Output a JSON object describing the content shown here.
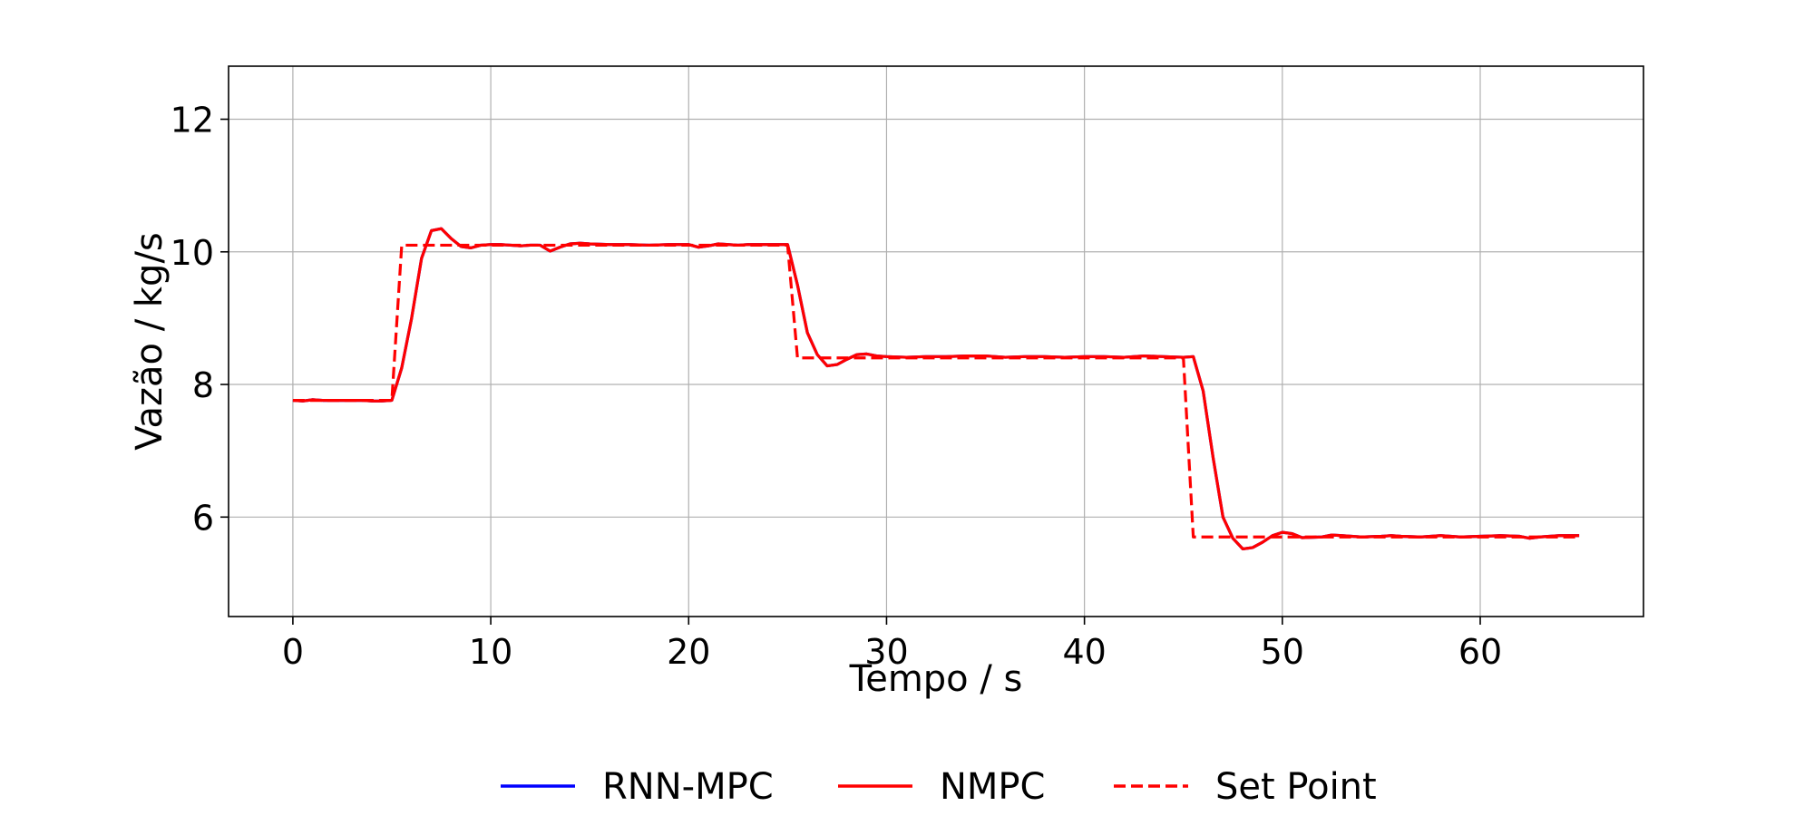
{
  "chart_data": {
    "type": "line",
    "title": "",
    "xlabel": "Tempo / s",
    "ylabel": "Vazão / kg/s",
    "xlim": [
      -3.25,
      68.25
    ],
    "ylim": [
      4.5,
      12.8
    ],
    "xticks": [
      0,
      10,
      20,
      30,
      40,
      50,
      60
    ],
    "yticks": [
      6,
      8,
      10,
      12
    ],
    "grid": true,
    "legend_position": "bottom-center",
    "series": [
      {
        "name": "RNN-MPC",
        "color": "#0000ff",
        "style": "solid",
        "x": [
          0,
          0.5,
          1,
          1.5,
          2,
          2.5,
          3,
          3.5,
          4,
          4.5,
          5,
          5.5,
          6,
          6.5,
          7,
          7.5,
          8,
          8.5,
          9,
          9.5,
          10,
          10.5,
          11,
          11.5,
          12,
          12.5,
          13,
          13.5,
          14,
          14.5,
          15,
          16,
          17,
          18,
          19,
          20,
          20.5,
          21,
          21.5,
          22,
          22.5,
          23,
          24,
          25,
          25.5,
          26,
          26.5,
          27,
          27.5,
          28,
          28.5,
          29,
          29.5,
          30,
          31,
          32,
          33,
          34,
          35,
          36,
          37,
          38,
          39,
          40,
          41,
          42,
          43,
          44,
          45,
          45.5,
          46,
          46.5,
          47,
          47.5,
          48,
          48.5,
          49,
          49.5,
          50,
          50.5,
          51,
          52,
          52.5,
          53,
          54,
          55,
          55.5,
          56,
          57,
          58,
          58.5,
          59,
          60,
          61,
          62,
          62.5,
          63,
          64,
          64.5,
          65
        ],
        "y": [
          7.76,
          7.75,
          7.77,
          7.76,
          7.76,
          7.76,
          7.76,
          7.76,
          7.75,
          7.75,
          7.76,
          8.25,
          9.0,
          9.9,
          10.32,
          10.35,
          10.2,
          10.08,
          10.06,
          10.1,
          10.11,
          10.11,
          10.1,
          10.09,
          10.1,
          10.1,
          10.01,
          10.07,
          10.12,
          10.13,
          10.12,
          10.11,
          10.11,
          10.1,
          10.11,
          10.11,
          10.07,
          10.09,
          10.12,
          10.11,
          10.1,
          10.11,
          10.11,
          10.11,
          9.5,
          8.78,
          8.45,
          8.28,
          8.3,
          8.38,
          8.45,
          8.46,
          8.43,
          8.42,
          8.41,
          8.42,
          8.42,
          8.43,
          8.43,
          8.41,
          8.42,
          8.42,
          8.41,
          8.42,
          8.42,
          8.41,
          8.43,
          8.42,
          8.41,
          8.42,
          7.9,
          6.9,
          6.0,
          5.68,
          5.52,
          5.54,
          5.62,
          5.72,
          5.77,
          5.75,
          5.69,
          5.7,
          5.73,
          5.72,
          5.7,
          5.71,
          5.72,
          5.71,
          5.7,
          5.72,
          5.71,
          5.7,
          5.71,
          5.72,
          5.71,
          5.68,
          5.7,
          5.72,
          5.72,
          5.72
        ]
      },
      {
        "name": "NMPC",
        "color": "#ff0000",
        "style": "solid",
        "x": [
          0,
          0.5,
          1,
          1.5,
          2,
          2.5,
          3,
          3.5,
          4,
          4.5,
          5,
          5.5,
          6,
          6.5,
          7,
          7.5,
          8,
          8.5,
          9,
          9.5,
          10,
          10.5,
          11,
          11.5,
          12,
          12.5,
          13,
          13.5,
          14,
          14.5,
          15,
          16,
          17,
          18,
          19,
          20,
          20.5,
          21,
          21.5,
          22,
          22.5,
          23,
          24,
          25,
          25.5,
          26,
          26.5,
          27,
          27.5,
          28,
          28.5,
          29,
          29.5,
          30,
          31,
          32,
          33,
          34,
          35,
          36,
          37,
          38,
          39,
          40,
          41,
          42,
          43,
          44,
          45,
          45.5,
          46,
          46.5,
          47,
          47.5,
          48,
          48.5,
          49,
          49.5,
          50,
          50.5,
          51,
          52,
          52.5,
          53,
          54,
          55,
          55.5,
          56,
          57,
          58,
          58.5,
          59,
          60,
          61,
          62,
          62.5,
          63,
          64,
          64.5,
          65
        ],
        "y": [
          7.76,
          7.75,
          7.77,
          7.76,
          7.76,
          7.76,
          7.76,
          7.76,
          7.75,
          7.75,
          7.76,
          8.25,
          9.0,
          9.9,
          10.32,
          10.35,
          10.2,
          10.08,
          10.06,
          10.1,
          10.11,
          10.11,
          10.1,
          10.09,
          10.1,
          10.1,
          10.01,
          10.07,
          10.12,
          10.13,
          10.12,
          10.11,
          10.11,
          10.1,
          10.11,
          10.11,
          10.07,
          10.09,
          10.12,
          10.11,
          10.1,
          10.11,
          10.11,
          10.11,
          9.5,
          8.78,
          8.45,
          8.28,
          8.3,
          8.38,
          8.45,
          8.46,
          8.43,
          8.42,
          8.41,
          8.42,
          8.42,
          8.43,
          8.43,
          8.41,
          8.42,
          8.42,
          8.41,
          8.42,
          8.42,
          8.41,
          8.43,
          8.42,
          8.41,
          8.42,
          7.9,
          6.9,
          6.0,
          5.68,
          5.52,
          5.54,
          5.62,
          5.72,
          5.77,
          5.75,
          5.69,
          5.7,
          5.73,
          5.72,
          5.7,
          5.71,
          5.72,
          5.71,
          5.7,
          5.72,
          5.71,
          5.7,
          5.71,
          5.72,
          5.71,
          5.68,
          5.7,
          5.72,
          5.72,
          5.72
        ]
      },
      {
        "name": "Set Point",
        "color": "#ff0000",
        "style": "dashed",
        "x": [
          0,
          5,
          5.5,
          25,
          25.5,
          45,
          45.5,
          65
        ],
        "y": [
          7.76,
          7.76,
          10.1,
          10.1,
          8.4,
          8.4,
          5.7,
          5.7
        ]
      }
    ]
  }
}
